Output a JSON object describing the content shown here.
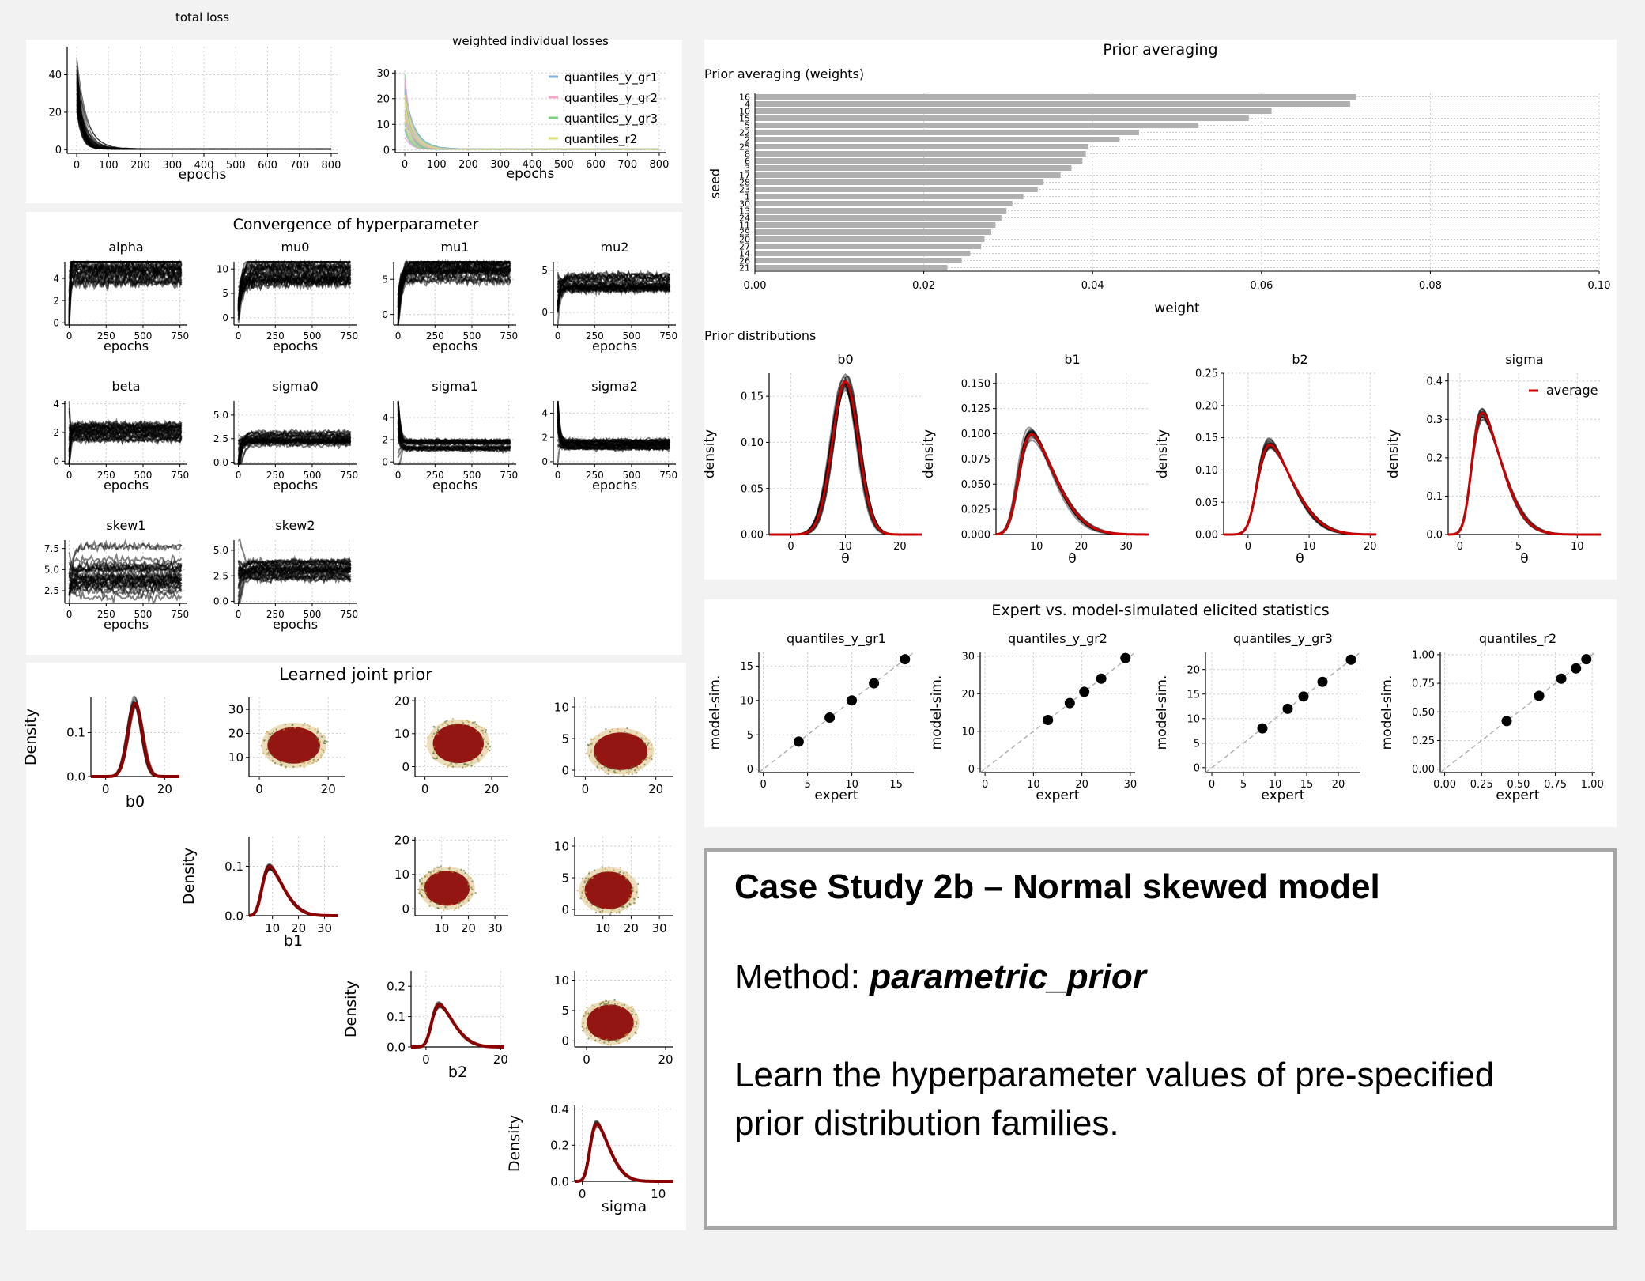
{
  "colors": {
    "loss_lines": "#000000",
    "prior_red": "#cc0000",
    "bar": "#b0b0b0",
    "scatter_dark": "#8b0000",
    "scatter_edge": "#c8a040",
    "legend_gr1": "#7fb2dd",
    "legend_gr2": "#f4a6cc",
    "legend_gr3": "#7fcf82",
    "legend_r2": "#dede7a",
    "diag": "#aaaaaa"
  },
  "case": {
    "title": "Case Study 2b – Normal skewed model",
    "method_label": "Method:",
    "method_value": "parametric_prior",
    "description": "Learn the hyperparameter values of pre-specified prior distribution families."
  },
  "headers": {
    "convergence": "Convergence of hyperparameter",
    "joint": "Learned joint prior",
    "prior_avg": "Prior averaging",
    "expert": "Expert vs. model-simulated elicited statistics"
  },
  "chart_data": [
    {
      "id": "total-loss",
      "type": "line",
      "title": "total loss",
      "xlabel": "epochs",
      "ylabel": "",
      "xlim": [
        -30,
        820
      ],
      "ylim": [
        -2,
        55
      ],
      "xticks": [
        0,
        100,
        200,
        300,
        400,
        500,
        600,
        700,
        800
      ],
      "yticks": [
        0,
        20,
        40
      ],
      "grid": true
    },
    {
      "id": "weighted-losses",
      "type": "line",
      "title": "weighted individual losses",
      "xlabel": "epochs",
      "ylabel": "",
      "xlim": [
        -30,
        820
      ],
      "ylim": [
        -1,
        31
      ],
      "xticks": [
        0,
        100,
        200,
        300,
        400,
        500,
        600,
        700,
        800
      ],
      "yticks": [
        0,
        10,
        20,
        30
      ],
      "legend": [
        "quantiles_y_gr1",
        "quantiles_y_gr2",
        "quantiles_y_gr3",
        "quantiles_r2"
      ],
      "legend_position": "top-right",
      "grid": true
    },
    {
      "id": "conv-alpha",
      "type": "line",
      "title": "alpha",
      "xlabel": "epochs",
      "xlim": [
        -30,
        800
      ],
      "ylim": [
        -0.2,
        5.5
      ],
      "xticks": [
        0,
        250,
        500,
        750
      ],
      "yticks": [
        0,
        2,
        4
      ],
      "final": 5,
      "start": 1.5,
      "rate": 5
    },
    {
      "id": "conv-mu0",
      "type": "line",
      "title": "mu0",
      "xlabel": "epochs",
      "xlim": [
        -30,
        800
      ],
      "ylim": [
        -1.5,
        11.5
      ],
      "xticks": [
        0,
        250,
        500,
        750
      ],
      "yticks": [
        0,
        5,
        10
      ],
      "final": 10,
      "start": 2,
      "rate": 25
    },
    {
      "id": "conv-mu1",
      "type": "line",
      "title": "mu1",
      "xlabel": "epochs",
      "xlim": [
        -30,
        800
      ],
      "ylim": [
        -1.5,
        7.5
      ],
      "xticks": [
        0,
        250,
        500,
        750
      ],
      "yticks": [
        0,
        5
      ],
      "final": 6,
      "start": 0,
      "rate": 20
    },
    {
      "id": "conv-mu2",
      "type": "line",
      "title": "mu2",
      "xlabel": "epochs",
      "xlim": [
        -30,
        800
      ],
      "ylim": [
        -1.5,
        6
      ],
      "xticks": [
        0,
        250,
        500,
        750
      ],
      "yticks": [
        0,
        5
      ],
      "final": 3.5,
      "start": 2,
      "rate": 20
    },
    {
      "id": "conv-beta",
      "type": "line",
      "title": "beta",
      "xlabel": "epochs",
      "xlim": [
        -30,
        800
      ],
      "ylim": [
        -0.2,
        4.2
      ],
      "xticks": [
        0,
        250,
        500,
        750
      ],
      "yticks": [
        0,
        2,
        4
      ],
      "final": 2,
      "start": 0.5,
      "rate": 6
    },
    {
      "id": "conv-sigma0",
      "type": "line",
      "title": "sigma0",
      "xlabel": "epochs",
      "xlim": [
        -30,
        800
      ],
      "ylim": [
        -0.2,
        6.5
      ],
      "xticks": [
        0,
        250,
        500,
        750
      ],
      "yticks": [
        "0.0",
        "2.5",
        "5.0"
      ],
      "final": 2.5,
      "start": 0.5,
      "rate": 25
    },
    {
      "id": "conv-sigma1",
      "type": "line",
      "title": "sigma1",
      "xlabel": "epochs",
      "xlim": [
        -30,
        800
      ],
      "ylim": [
        -0.2,
        5.5
      ],
      "xticks": [
        0,
        250,
        500,
        750
      ],
      "yticks": [
        0,
        2,
        4
      ],
      "final": 1.5,
      "start": 3.5,
      "rate": 12
    },
    {
      "id": "conv-sigma2",
      "type": "line",
      "title": "sigma2",
      "xlabel": "epochs",
      "xlim": [
        -30,
        800
      ],
      "ylim": [
        -0.2,
        5
      ],
      "xticks": [
        0,
        250,
        500,
        750
      ],
      "yticks": [
        0,
        2,
        4
      ],
      "final": 1.4,
      "start": 3.5,
      "rate": 12
    },
    {
      "id": "conv-skew1",
      "type": "line",
      "title": "skew1",
      "xlabel": "epochs",
      "xlim": [
        -30,
        800
      ],
      "ylim": [
        1,
        8.5
      ],
      "xticks": [
        0,
        250,
        500,
        750
      ],
      "yticks": [
        "2.5",
        "5.0",
        "7.5"
      ],
      "final": 4.5,
      "start": 3,
      "rate": 25
    },
    {
      "id": "conv-skew2",
      "type": "line",
      "title": "skew2",
      "xlabel": "epochs",
      "xlim": [
        -30,
        800
      ],
      "ylim": [
        -0.2,
        6
      ],
      "xticks": [
        0,
        250,
        500,
        750
      ],
      "yticks": [
        "0.0",
        "2.5",
        "5.0"
      ],
      "final": 3,
      "start": 2,
      "rate": 25
    },
    {
      "id": "prior-weights",
      "type": "bar",
      "title": "Prior averaging (weights)",
      "xlabel": "weight",
      "ylabel": "seed",
      "xlim": [
        0,
        0.1
      ],
      "xticks": [
        "0.00",
        "0.02",
        "0.04",
        "0.06",
        "0.08",
        "0.10"
      ],
      "categories": [
        "16",
        "4",
        "10",
        "15",
        "5",
        "22",
        "2",
        "25",
        "8",
        "6",
        "3",
        "17",
        "28",
        "23",
        "1",
        "30",
        "13",
        "24",
        "11",
        "29",
        "20",
        "27",
        "14",
        "26",
        "21"
      ],
      "values": [
        0.0712,
        0.0705,
        0.0612,
        0.0585,
        0.0525,
        0.0455,
        0.0432,
        0.0395,
        0.0392,
        0.0388,
        0.0375,
        0.0362,
        0.0342,
        0.0335,
        0.0318,
        0.0305,
        0.0298,
        0.0292,
        0.0285,
        0.028,
        0.0272,
        0.0268,
        0.0255,
        0.0245,
        0.0228
      ]
    },
    {
      "id": "prior-b0",
      "type": "line",
      "title": "b0",
      "xlabel": "θ",
      "ylabel": "density",
      "xlim": [
        -4,
        24
      ],
      "ylim": [
        0,
        0.175
      ],
      "xticks": [
        0,
        10,
        20
      ],
      "yticks": [
        "0.00",
        "0.05",
        "0.10",
        "0.15"
      ],
      "dist": "skewnormal",
      "loc": 10,
      "scale": 2.4,
      "skew": 0
    },
    {
      "id": "prior-b1",
      "type": "line",
      "title": "b1",
      "xlabel": "θ",
      "ylabel": "density",
      "xlim": [
        1,
        35
      ],
      "ylim": [
        0,
        0.16
      ],
      "xticks": [
        10,
        20,
        30
      ],
      "yticks": [
        "0.000",
        "0.025",
        "0.050",
        "0.075",
        "0.100",
        "0.125",
        "0.150"
      ],
      "dist": "skewnormal",
      "loc": 6,
      "scale": 7,
      "skew": 4
    },
    {
      "id": "prior-b2",
      "type": "line",
      "title": "b2",
      "xlabel": "θ",
      "ylabel": "density",
      "xlim": [
        -4,
        21
      ],
      "ylim": [
        0,
        0.25
      ],
      "xticks": [
        0,
        10,
        20
      ],
      "yticks": [
        "0.00",
        "0.05",
        "0.10",
        "0.15",
        "0.20",
        "0.25"
      ],
      "dist": "skewnormal",
      "loc": 1.5,
      "scale": 5,
      "skew": 4
    },
    {
      "id": "prior-sigma",
      "type": "line",
      "title": "sigma",
      "xlabel": "θ",
      "ylabel": "density",
      "xlim": [
        -1,
        12
      ],
      "ylim": [
        0,
        0.42
      ],
      "xticks": [
        0,
        5,
        10
      ],
      "yticks": [
        "0.0",
        "0.1",
        "0.2",
        "0.3",
        "0.4"
      ],
      "legend": [
        "average"
      ],
      "legend_position": "top-right",
      "dist": "skewnormal",
      "loc": 1.0,
      "scale": 2.2,
      "skew": 4
    },
    {
      "id": "expert-gr1",
      "type": "scatter",
      "title": "quantiles_y_gr1",
      "xlabel": "expert",
      "ylabel": "model-sim.",
      "xlim": [
        -0.5,
        17
      ],
      "ylim": [
        -0.5,
        17
      ],
      "xticks": [
        0,
        5,
        10,
        15
      ],
      "yticks": [
        0,
        5,
        10,
        15
      ],
      "x": [
        4,
        7.5,
        10,
        12.5,
        16
      ],
      "y": [
        4,
        7.5,
        10,
        12.5,
        16
      ]
    },
    {
      "id": "expert-gr2",
      "type": "scatter",
      "title": "quantiles_y_gr2",
      "xlabel": "expert",
      "ylabel": "model-sim.",
      "xlim": [
        -1,
        31
      ],
      "ylim": [
        -1,
        31
      ],
      "xticks": [
        0,
        10,
        20,
        30
      ],
      "yticks": [
        0,
        10,
        20,
        30
      ],
      "x": [
        13,
        17.5,
        20.5,
        24,
        29
      ],
      "y": [
        13,
        17.5,
        20.5,
        24,
        29.5
      ]
    },
    {
      "id": "expert-gr3",
      "type": "scatter",
      "title": "quantiles_y_gr3",
      "xlabel": "expert",
      "ylabel": "model-sim.",
      "xlim": [
        -1,
        23.5
      ],
      "ylim": [
        -1,
        23.5
      ],
      "xticks": [
        0,
        5,
        10,
        15,
        20
      ],
      "yticks": [
        0,
        5,
        10,
        15,
        20
      ],
      "x": [
        8,
        12,
        14.5,
        17.5,
        22
      ],
      "y": [
        8,
        12,
        14.5,
        17.5,
        22
      ]
    },
    {
      "id": "expert-r2",
      "type": "scatter",
      "title": "quantiles_r2",
      "xlabel": "expert",
      "ylabel": "model-sim.",
      "xlim": [
        -0.03,
        1.02
      ],
      "ylim": [
        -0.03,
        1.02
      ],
      "xticks": [
        "0.00",
        "0.25",
        "0.50",
        "0.75",
        "1.00"
      ],
      "yticks": [
        "0.00",
        "0.25",
        "0.50",
        "0.75",
        "1.00"
      ],
      "x": [
        0.42,
        0.64,
        0.79,
        0.89,
        0.96
      ],
      "y": [
        0.42,
        0.64,
        0.79,
        0.88,
        0.96
      ]
    },
    {
      "id": "joint-b0",
      "type": "line",
      "title": "",
      "xlabel": "b0",
      "ylabel": "Density",
      "xlim": [
        -5,
        25
      ],
      "ylim": [
        0,
        0.18
      ],
      "xticks": [
        0,
        20
      ],
      "yticks": [
        "0.0",
        "0.1"
      ],
      "dist": "skewnormal",
      "loc": 10,
      "scale": 2.4,
      "skew": 0
    },
    {
      "id": "joint-b1",
      "type": "line",
      "title": "",
      "xlabel": "b1",
      "ylabel": "Density",
      "xlim": [
        1,
        35
      ],
      "ylim": [
        0,
        0.16
      ],
      "xticks": [
        10,
        20,
        30
      ],
      "yticks": [
        "0.0",
        "0.1"
      ],
      "dist": "skewnormal",
      "loc": 6,
      "scale": 7,
      "skew": 4
    },
    {
      "id": "joint-b2",
      "type": "line",
      "title": "",
      "xlabel": "b2",
      "ylabel": "Density",
      "xlim": [
        -4,
        21
      ],
      "ylim": [
        0,
        0.25
      ],
      "xticks": [
        0,
        20
      ],
      "yticks": [
        "0.0",
        "0.1",
        "0.2"
      ],
      "dist": "skewnormal",
      "loc": 1.5,
      "scale": 5,
      "skew": 4
    },
    {
      "id": "joint-sigma",
      "type": "line",
      "title": "",
      "xlabel": "sigma",
      "ylabel": "Density",
      "xlim": [
        -1,
        12
      ],
      "ylim": [
        0,
        0.42
      ],
      "xticks": [
        0,
        10
      ],
      "yticks": [
        "0.0",
        "0.2",
        "0.4"
      ],
      "dist": "skewnormal",
      "loc": 1.0,
      "scale": 2.2,
      "skew": 4
    },
    {
      "id": "joint-b0-b1",
      "type": "scatter",
      "xlim": [
        -3,
        25
      ],
      "ylim": [
        2,
        35
      ],
      "xticks": [
        0,
        20
      ],
      "yticks": [
        10,
        20,
        30
      ],
      "cx": 10,
      "cy": 15,
      "rx": 9,
      "ry": 9
    },
    {
      "id": "joint-b0-b2",
      "type": "scatter",
      "xlim": [
        -3,
        25
      ],
      "ylim": [
        -3,
        21
      ],
      "xticks": [
        0,
        20
      ],
      "yticks": [
        0,
        10,
        20
      ],
      "cx": 10,
      "cy": 7,
      "rx": 9,
      "ry": 7
    },
    {
      "id": "joint-b0-sigma",
      "type": "scatter",
      "xlim": [
        -3,
        25
      ],
      "ylim": [
        -1,
        11.5
      ],
      "xticks": [
        0,
        20
      ],
      "yticks": [
        0,
        5,
        10
      ],
      "cx": 10,
      "cy": 3,
      "rx": 9,
      "ry": 3.5
    },
    {
      "id": "joint-b1-b2",
      "type": "scatter",
      "xlim": [
        0,
        35
      ],
      "ylim": [
        -2,
        21
      ],
      "xticks": [
        10,
        20,
        30
      ],
      "yticks": [
        0,
        10,
        20
      ],
      "cx": 12,
      "cy": 6,
      "rx": 10,
      "ry": 6
    },
    {
      "id": "joint-b1-sigma",
      "type": "scatter",
      "xlim": [
        0,
        35
      ],
      "ylim": [
        -1,
        11.5
      ],
      "xticks": [
        10,
        20,
        30
      ],
      "yticks": [
        0,
        5,
        10
      ],
      "cx": 12,
      "cy": 3,
      "rx": 10,
      "ry": 3.5
    },
    {
      "id": "joint-b2-sigma",
      "type": "scatter",
      "xlim": [
        -3,
        22
      ],
      "ylim": [
        -1,
        11.5
      ],
      "xticks": [
        0,
        20
      ],
      "yticks": [
        0,
        5,
        10
      ],
      "cx": 6,
      "cy": 3,
      "rx": 7,
      "ry": 3.5
    }
  ]
}
